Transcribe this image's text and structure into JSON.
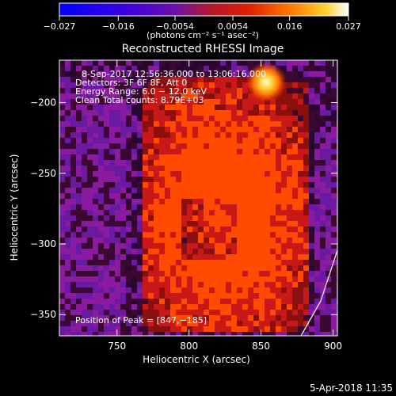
{
  "chart_data": {
    "type": "heatmap",
    "title": "Reconstructed RHESSI Image",
    "xlabel": "Heliocentric X (arcsec)",
    "ylabel": "Heliocentric Y (arcsec)",
    "xlim": [
      710,
      903
    ],
    "ylim": [
      -365,
      -170
    ],
    "x_ticks": [
      750,
      800,
      850,
      900
    ],
    "y_ticks": [
      -200,
      -250,
      -300,
      -350
    ],
    "colorbar": {
      "range": [
        -0.027,
        0.027
      ],
      "tick_values": [
        -0.027,
        -0.016,
        -0.0054,
        0.0054,
        0.016,
        0.027
      ],
      "tick_labels": [
        "−0.027",
        "−0.016",
        "−0.0054",
        "0.0054",
        "0.016",
        "0.027"
      ],
      "unit": "(photons cm⁻² s⁻¹ asec⁻²)",
      "colors": [
        "#0000ff",
        "#5a00c8",
        "#8a1aa0",
        "#c81818",
        "#ff4a00",
        "#ff9a10",
        "#ffd040",
        "#ffffff"
      ]
    },
    "annotations": [
      "8-Sep-2017 12:56:36.000 to 13:06:16.000",
      "Detectors: 3F 6F 8F, Att 0",
      "Energy Range: 6.0 − 12.0 keV",
      "Clean     Total counts: 8.79E+03"
    ],
    "peak_label": "Position of Peak = [847,−185]",
    "peak": [
      847,
      -185
    ]
  },
  "footer": {
    "date": "5-Apr-2018 11:35"
  }
}
